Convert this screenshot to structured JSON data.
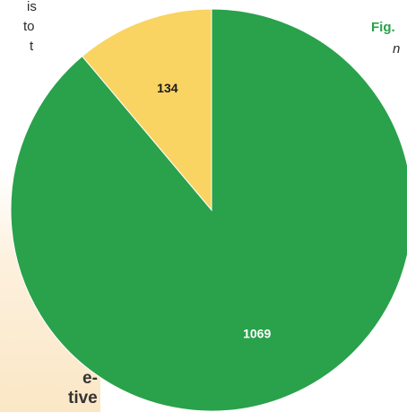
{
  "text_fragments": {
    "line1": "is",
    "line2": "to",
    "line3": "t"
  },
  "figure": {
    "label": "Fig.",
    "subtitle": "n"
  },
  "sidebar": {
    "heading_line1": "e-",
    "heading_line2": "tive"
  },
  "colors": {
    "green": "#2aa14b",
    "yellow": "#f9d463",
    "slice_stroke": "#ffffff"
  },
  "chart_data": {
    "type": "pie",
    "values": [
      1069,
      134
    ],
    "data_labels": [
      "1069",
      "134"
    ],
    "colors": [
      "#2aa14b",
      "#f9d463"
    ],
    "label_colors": [
      "#ffffff",
      "#1a1a1a"
    ],
    "start": "12 o'clock",
    "direction": "clockwise"
  }
}
